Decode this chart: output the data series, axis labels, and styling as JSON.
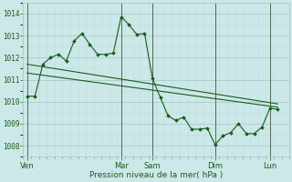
{
  "background_color": "#cce8e8",
  "plot_bg_color": "#cce8e8",
  "grid_major_color": "#aacccc",
  "grid_minor_color": "#c0dcdc",
  "vline_color": "#556655",
  "line_color": "#1a5c1a",
  "marker_color": "#1a5c1a",
  "xlabel": "Pression niveau de la mer( hPa )",
  "ylim": [
    1007.5,
    1014.5
  ],
  "yticks": [
    1008,
    1009,
    1010,
    1011,
    1012,
    1013,
    1014
  ],
  "x_day_labels": [
    "Ven",
    "Mar",
    "Sam",
    "Dim",
    "Lun"
  ],
  "x_day_positions": [
    0.5,
    12.5,
    16.5,
    24.5,
    31.5
  ],
  "x_vline_positions": [
    0.5,
    12.5,
    16.5,
    24.5,
    31.5
  ],
  "xlim": [
    0,
    34
  ],
  "series1": {
    "x": [
      0.5,
      1.5,
      2.5,
      3.5,
      4.5,
      5.5,
      6.5,
      7.5,
      8.5,
      9.5,
      10.5,
      11.5,
      12.5,
      13.5,
      14.5,
      15.5,
      16.5,
      17.5,
      18.5,
      19.5,
      20.5,
      21.5,
      22.5,
      23.5,
      24.5,
      25.5,
      26.5,
      27.5,
      28.5,
      29.5,
      30.5,
      31.5,
      32.5
    ],
    "y": [
      1010.25,
      1010.25,
      1011.7,
      1012.0,
      1012.15,
      1011.85,
      1012.75,
      1013.1,
      1012.6,
      1012.15,
      1012.15,
      1012.2,
      1013.85,
      1013.5,
      1013.05,
      1013.1,
      1011.05,
      1010.2,
      1009.35,
      1009.15,
      1009.3,
      1008.75,
      1008.75,
      1008.8,
      1008.05,
      1008.45,
      1008.6,
      1009.0,
      1008.55,
      1008.55,
      1008.85,
      1009.7,
      1009.65
    ]
  },
  "trend_line": {
    "x": [
      0.5,
      32.5
    ],
    "y": [
      1011.7,
      1009.9
    ]
  },
  "trend_line2": {
    "x": [
      0.5,
      32.5
    ],
    "y": [
      1011.3,
      1009.75
    ]
  }
}
